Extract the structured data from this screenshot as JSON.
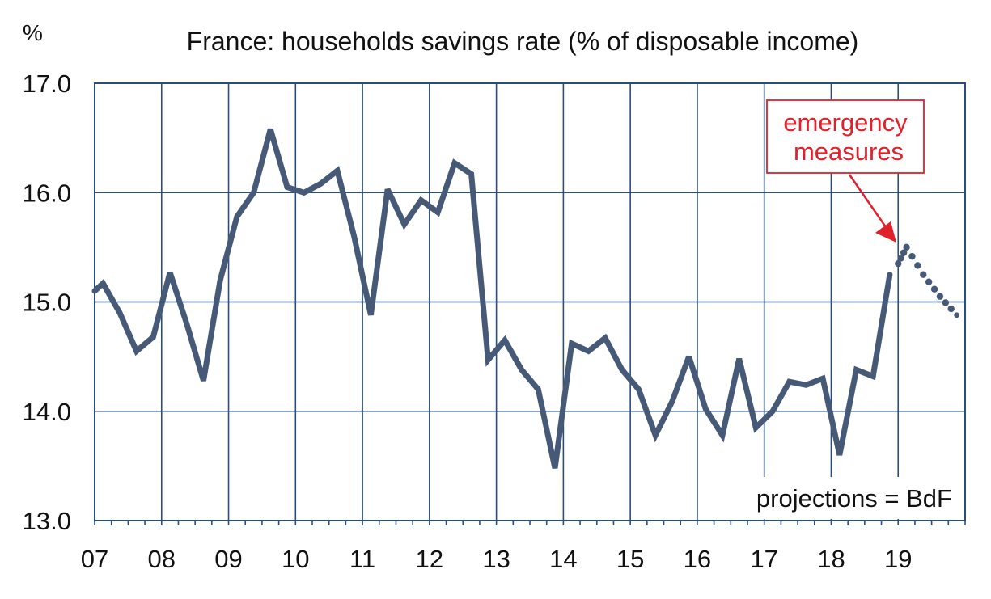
{
  "chart_data": {
    "type": "line",
    "title": "France: households savings rate (% of disposable income)",
    "ylabel": "%",
    "xlabel": "",
    "ylim": [
      13.0,
      17.0
    ],
    "xlim": [
      7,
      20
    ],
    "y_ticks": [
      "17.0",
      "16.0",
      "15.0",
      "14.0",
      "13.0"
    ],
    "x_ticks": [
      "07",
      "08",
      "09",
      "10",
      "11",
      "12",
      "13",
      "14",
      "15",
      "16",
      "17",
      "18",
      "19"
    ],
    "grid": true,
    "series": [
      {
        "name": "",
        "style": "solid",
        "color": "#465a78",
        "x": [
          7.0,
          7.125,
          7.375,
          7.625,
          7.875,
          8.125,
          8.375,
          8.625,
          8.875,
          9.125,
          9.375,
          9.625,
          9.875,
          10.125,
          10.375,
          10.625,
          10.875,
          11.125,
          11.375,
          11.625,
          11.875,
          12.125,
          12.375,
          12.625,
          12.875,
          13.125,
          13.375,
          13.625,
          13.875,
          14.125,
          14.375,
          14.625,
          14.875,
          15.125,
          15.375,
          15.625,
          15.875,
          16.125,
          16.375,
          16.625,
          16.875,
          17.125,
          17.375,
          17.625,
          17.875,
          18.125,
          18.375,
          18.625,
          18.875
        ],
        "y": [
          15.1,
          15.17,
          14.9,
          14.55,
          14.68,
          15.27,
          14.8,
          14.28,
          15.2,
          15.78,
          16.0,
          16.58,
          16.05,
          16.0,
          16.08,
          16.2,
          15.6,
          14.88,
          16.03,
          15.71,
          15.93,
          15.82,
          16.27,
          16.17,
          14.47,
          14.65,
          14.38,
          14.2,
          13.48,
          14.62,
          14.55,
          14.67,
          14.38,
          14.2,
          13.78,
          14.09,
          14.5,
          14.02,
          13.78,
          14.48,
          13.85,
          14.0,
          14.27,
          14.24,
          14.3,
          13.6,
          14.38,
          14.32,
          15.25
        ]
      },
      {
        "name": "projections",
        "style": "dotted",
        "color": "#465a78",
        "x": [
          19.0,
          19.125,
          19.375,
          19.625,
          19.875
        ],
        "y": [
          15.35,
          15.5,
          15.25,
          15.05,
          14.88
        ]
      }
    ],
    "annotations": [
      {
        "text_line1": "emergency",
        "text_line2": "measures",
        "color": "#e0202a"
      },
      {
        "text": "projections = BdF"
      }
    ],
    "colors": {
      "line": "#465a78",
      "grid": "#2a4e7c",
      "annotation": "#e0202a"
    }
  }
}
